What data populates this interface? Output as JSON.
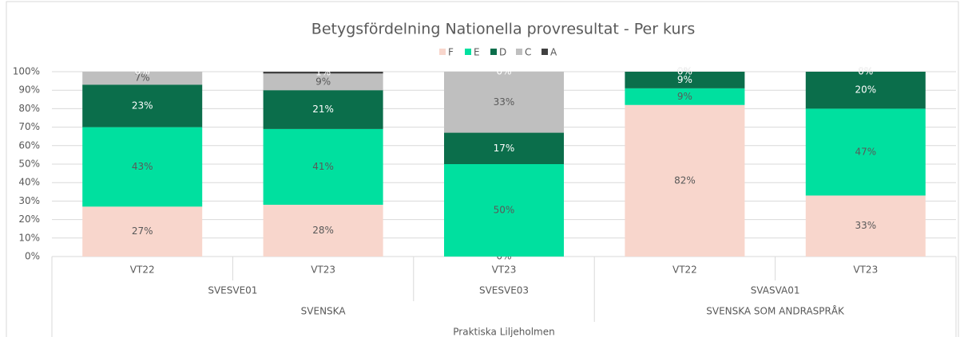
{
  "chart_data": {
    "type": "stacked_bar_100",
    "title": "Betygsfördelning Nationella provresultat - Per kurs",
    "categories": [
      "VT22",
      "VT23",
      "VT23",
      "VT22",
      "VT23"
    ],
    "category_groups": [
      {
        "labels": [
          "SVESVE01",
          "SVESVE03",
          "SVASVA01"
        ],
        "spans": [
          2,
          1,
          2
        ]
      },
      {
        "labels": [
          "SVENSKA",
          "SVENSKA SOM ANDRASPRÅK"
        ],
        "spans": [
          3,
          2
        ]
      },
      {
        "labels": [
          "Praktiska Liljeholmen"
        ],
        "spans": [
          5
        ]
      }
    ],
    "series": [
      {
        "name": "F",
        "color": "#f8d6cc",
        "values": [
          27,
          28,
          0,
          82,
          33
        ],
        "value_labels": [
          "27%",
          "28%",
          "0%",
          "82%",
          "33%"
        ]
      },
      {
        "name": "E",
        "color": "#00e09f",
        "values": [
          43,
          41,
          50,
          9,
          47
        ],
        "value_labels": [
          "43%",
          "41%",
          "50%",
          "9%",
          "47%"
        ]
      },
      {
        "name": "D",
        "color": "#0b6e4b",
        "values": [
          23,
          21,
          17,
          9,
          20
        ],
        "value_labels": [
          "23%",
          "21%",
          "17%",
          "9%",
          "20%"
        ]
      },
      {
        "name": "C",
        "color": "#bfbfbf",
        "values": [
          7,
          9,
          33,
          0,
          0
        ],
        "value_labels": [
          "7%",
          "9%",
          "33%",
          "0%",
          "0%"
        ]
      },
      {
        "name": "A",
        "color": "#404040",
        "values": [
          0,
          1,
          0,
          0,
          0
        ],
        "value_labels": [
          "0%",
          "1%",
          "0%",
          "0%",
          "0%"
        ]
      }
    ],
    "ylim": [
      0,
      100
    ],
    "yticks": [
      {
        "value": 0,
        "label": "0%"
      },
      {
        "value": 10,
        "label": "10%"
      },
      {
        "value": 20,
        "label": "20%"
      },
      {
        "value": 30,
        "label": "30%"
      },
      {
        "value": 40,
        "label": "40%"
      },
      {
        "value": 50,
        "label": "50%"
      },
      {
        "value": 60,
        "label": "60%"
      },
      {
        "value": 70,
        "label": "70%"
      },
      {
        "value": 80,
        "label": "80%"
      },
      {
        "value": 90,
        "label": "90%"
      },
      {
        "value": 100,
        "label": "100%"
      }
    ],
    "grid": true,
    "legend": "top"
  }
}
